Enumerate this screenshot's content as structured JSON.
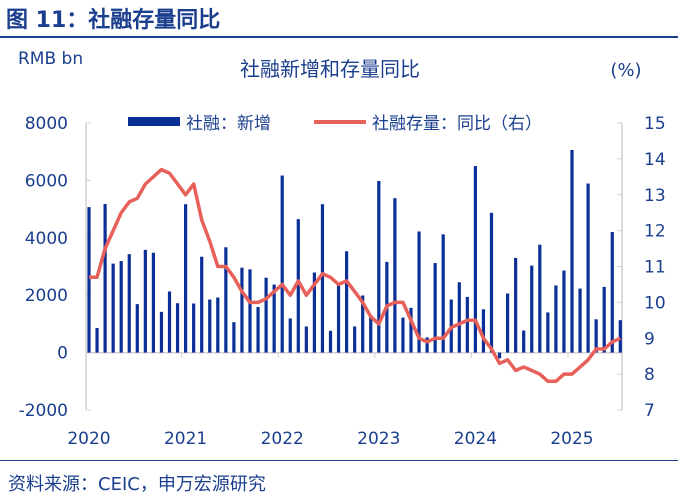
{
  "figure_title": "图 11：社融存量同比",
  "source": "资料来源：CEIC，申万宏源研究",
  "colors": {
    "bars": "#0a2f96",
    "line": "#e8605a",
    "text": "#1b3f8f",
    "axis": "#d0d0d0"
  },
  "chart_data": {
    "type": "bar+line",
    "title": "社融新增和存量同比",
    "ylabel_left": "RMB bn",
    "ylabel_right": "(%)",
    "ylim_left": [
      -2000,
      8000
    ],
    "yticks_left": [
      "-2000",
      "0",
      "2000",
      "4000",
      "6000",
      "8000"
    ],
    "ylim_right": [
      7,
      15
    ],
    "yticks_right": [
      "7",
      "8",
      "9",
      "10",
      "11",
      "12",
      "13",
      "14",
      "15"
    ],
    "xticks": [
      "2020",
      "2021",
      "2022",
      "2023",
      "2024",
      "2025"
    ],
    "legend_position": "top",
    "x_start": "2020-01",
    "x_end": "2025-07",
    "series": [
      {
        "name": "社融：新增",
        "axis": "left",
        "type": "bar",
        "values": [
          5070,
          855,
          5180,
          3100,
          3190,
          3430,
          1690,
          3580,
          3480,
          1420,
          2130,
          1720,
          5170,
          1710,
          3340,
          1850,
          1920,
          3670,
          1060,
          2960,
          2900,
          1590,
          2610,
          2370,
          6170,
          1190,
          4650,
          910,
          2790,
          5170,
          760,
          2430,
          3530,
          910,
          1990,
          1310,
          5980,
          3160,
          5380,
          1220,
          1560,
          4220,
          530,
          3120,
          4120,
          1850,
          2450,
          1940,
          6500,
          1510,
          4870,
          -200,
          2060,
          3300,
          770,
          3030,
          3760,
          1400,
          2340,
          2860,
          7060,
          2230,
          5890,
          1160,
          2290,
          4200,
          1130
        ]
      },
      {
        "name": "社融存量：同比（右）",
        "axis": "right",
        "type": "line",
        "values": [
          10.7,
          10.7,
          11.5,
          12.0,
          12.5,
          12.8,
          12.9,
          13.3,
          13.5,
          13.7,
          13.6,
          13.3,
          13.0,
          13.3,
          12.3,
          11.7,
          11.0,
          11.0,
          10.7,
          10.3,
          10.0,
          10.0,
          10.1,
          10.3,
          10.5,
          10.2,
          10.6,
          10.2,
          10.5,
          10.8,
          10.7,
          10.5,
          10.6,
          10.3,
          10.0,
          9.6,
          9.4,
          9.9,
          10.0,
          10.0,
          9.5,
          9.0,
          8.9,
          9.0,
          9.0,
          9.3,
          9.4,
          9.5,
          9.5,
          9.0,
          8.7,
          8.3,
          8.4,
          8.1,
          8.2,
          8.1,
          8.0,
          7.8,
          7.8,
          8.0,
          8.0,
          8.2,
          8.4,
          8.7,
          8.7,
          8.9,
          9.0
        ]
      }
    ]
  }
}
